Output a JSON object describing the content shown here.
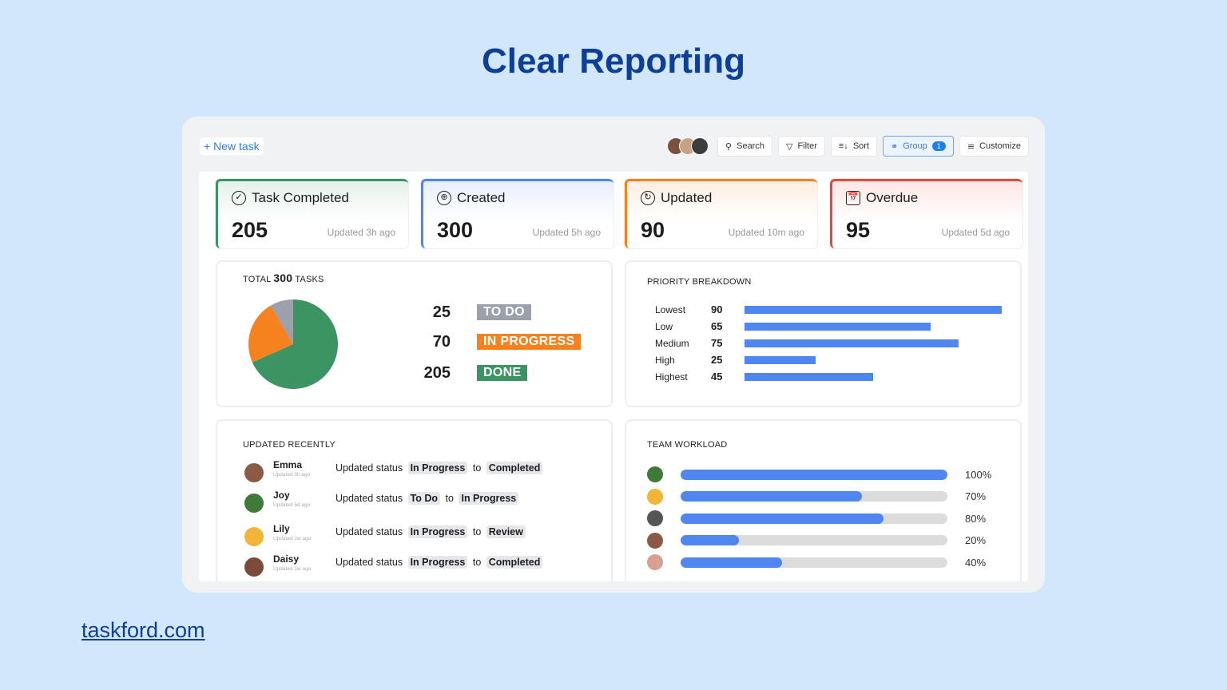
{
  "page": {
    "title": "Clear Reporting",
    "footer": "taskford.com"
  },
  "toolbar": {
    "new_task": "+ New task",
    "search": "Search",
    "filter": "Filter",
    "sort": "Sort",
    "group": "Group",
    "group_count": "1",
    "customize": "Customize"
  },
  "stats": [
    {
      "label": "Task Completed",
      "value": "205",
      "updated": "Updated 3h ago",
      "color": "#3d9463"
    },
    {
      "label": "Created",
      "value": "300",
      "updated": "Updated 5h ago",
      "color": "#4f86f0"
    },
    {
      "label": "Updated",
      "value": "90",
      "updated": "Updated 10m ago",
      "color": "#f5821f"
    },
    {
      "label": "Overdue",
      "value": "95",
      "updated": "Updated 5d ago",
      "color": "#e8473b"
    }
  ],
  "total": {
    "prefix": "TOTAL",
    "count": "300",
    "suffix": "TASKS",
    "items": [
      {
        "value": 25,
        "label": "TO DO",
        "color": "#9aa1ab"
      },
      {
        "value": 70,
        "label": "IN PROGRESS",
        "color": "#f5821f"
      },
      {
        "value": 205,
        "label": "DONE",
        "color": "#3d9463"
      }
    ]
  },
  "priority": {
    "title": "PRIORITY BREAKDOWN",
    "max": 90,
    "items": [
      {
        "label": "Lowest",
        "value": 90
      },
      {
        "label": "Low",
        "value": 65
      },
      {
        "label": "Medium",
        "value": 75
      },
      {
        "label": "High",
        "value": 25
      },
      {
        "label": "Highest",
        "value": 45
      }
    ]
  },
  "recent": {
    "title": "UPDATED RECENTLY",
    "verb": "Updated status",
    "to": "to",
    "items": [
      {
        "name": "Emma",
        "time": "Updated 3h ago",
        "from": "In Progress",
        "dest": "Completed"
      },
      {
        "name": "Joy",
        "time": "Updated 5d ago",
        "from": "To Do",
        "dest": "In Progress"
      },
      {
        "name": "Lily",
        "time": "Updated 1w ago",
        "from": "In Progress",
        "dest": "Review"
      },
      {
        "name": "Daisy",
        "time": "Updated 1w ago",
        "from": "In Progress",
        "dest": "Completed"
      }
    ]
  },
  "workload": {
    "title": "TEAM WORKLOAD",
    "items": [
      {
        "pct": 100,
        "label": "100%"
      },
      {
        "pct": 68,
        "label": "70%"
      },
      {
        "pct": 76,
        "label": "80%"
      },
      {
        "pct": 22,
        "label": "20%"
      },
      {
        "pct": 38,
        "label": "40%"
      }
    ]
  }
}
